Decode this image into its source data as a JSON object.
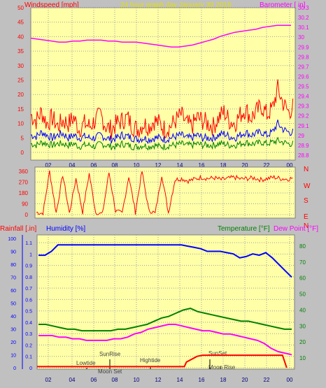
{
  "header": {
    "left_label": "Windspeed [mph]",
    "center_label": "24 hour graph day   January 30 2018",
    "right_label": "Barometer [ in]"
  },
  "colors": {
    "page_bg": "#c0c0c0",
    "plot_bg": "#ffffa8",
    "grid": "#9f9f9f",
    "wind_speed": "#ff0000",
    "wind_avg": "#0000ff",
    "wind_low": "#008000",
    "barometer": "#ff00ff",
    "wind_dir": "#ff0000",
    "humidity": "#0000ff",
    "temperature": "#008000",
    "dewpoint": "#ff00ff",
    "rainfall": "#ff0000",
    "header_center": "#e0e000"
  },
  "chart_data": [
    {
      "name": "wind-barometer",
      "type": "line",
      "x_ticks": [
        "02",
        "04",
        "06",
        "08",
        "10",
        "12",
        "14",
        "16",
        "18",
        "20",
        "22",
        "00"
      ],
      "left_axis": {
        "label": "Windspeed [mph]",
        "ticks": [
          0,
          5,
          10,
          15,
          20,
          25,
          30,
          35,
          40,
          45,
          50
        ],
        "ylim": [
          0,
          50
        ]
      },
      "right_axis": {
        "label": "Barometer [ in]",
        "ticks": [
          "28.8",
          "28.9",
          "29",
          "29.1",
          "29.2",
          "29.3",
          "29.4",
          "29.5",
          "29.6",
          "29.7",
          "29.8",
          "29.9",
          "30",
          "30.1",
          "30.2",
          "30.3"
        ],
        "ylim": [
          28.75,
          30.3
        ]
      },
      "series": [
        {
          "role": "gust",
          "y": [
            13,
            11,
            14,
            10,
            12,
            9,
            11,
            10,
            12,
            8,
            10,
            9,
            11,
            13,
            9,
            8,
            10,
            11,
            12,
            9,
            8,
            10,
            9,
            11,
            10,
            8,
            9,
            11,
            13,
            10,
            9,
            12,
            11,
            10,
            9,
            12,
            14,
            11,
            10,
            13,
            15,
            12,
            14,
            16,
            13,
            15,
            22,
            17,
            14,
            16
          ]
        },
        {
          "role": "average",
          "y": [
            6,
            5.5,
            7,
            6,
            5,
            6,
            6.5,
            5,
            6,
            5,
            5.5,
            5,
            5,
            6,
            5,
            4.5,
            5,
            6,
            5.5,
            5,
            4.5,
            5,
            4.5,
            5,
            5,
            4.5,
            5,
            5.5,
            6,
            5,
            5,
            6,
            5,
            5,
            5,
            6,
            6.5,
            5.5,
            5,
            6,
            7,
            6,
            6.5,
            7,
            6,
            7,
            10,
            8,
            7,
            7
          ]
        },
        {
          "role": "low",
          "y": [
            3,
            2.5,
            3.5,
            3,
            2.5,
            3,
            3,
            2.5,
            3,
            2,
            2.5,
            2.5,
            2,
            3,
            2.5,
            2,
            2,
            3,
            2.5,
            2,
            2,
            2.5,
            2,
            2.5,
            2,
            2,
            2.5,
            2.5,
            3,
            2.5,
            2.5,
            3,
            2.5,
            2.5,
            2.5,
            3,
            3,
            2.5,
            2.5,
            3,
            3.5,
            3,
            3,
            3.5,
            3,
            3.5,
            4,
            3.5,
            3,
            3
          ]
        },
        {
          "role": "barometer",
          "y": [
            29.99,
            29.98,
            29.97,
            29.96,
            29.95,
            29.95,
            29.96,
            29.96,
            29.97,
            29.97,
            29.97,
            29.96,
            29.96,
            29.95,
            29.95,
            29.95,
            29.94,
            29.93,
            29.92,
            29.91,
            29.9,
            29.9,
            29.91,
            29.92,
            29.94,
            29.96,
            29.98,
            30.01,
            30.03,
            30.05,
            30.06,
            30.07,
            30.08,
            30.1,
            30.11,
            30.12,
            30.12,
            30.12
          ]
        }
      ]
    },
    {
      "name": "wind-direction",
      "type": "line",
      "x_ticks": [
        "02",
        "04",
        "06",
        "08",
        "10",
        "12",
        "14",
        "16",
        "18",
        "20",
        "22",
        "00"
      ],
      "left_axis": {
        "ticks": [
          0,
          90,
          180,
          270,
          360
        ],
        "ylim": [
          0,
          360
        ]
      },
      "compass_labels": [
        "N",
        "W",
        "S",
        "E",
        "N"
      ],
      "y": [
        20,
        10,
        360,
        15,
        330,
        10,
        300,
        20,
        340,
        15,
        5,
        350,
        30,
        10,
        320,
        20,
        360,
        40,
        10,
        330,
        15,
        290,
        300,
        280,
        295,
        310,
        300,
        305,
        290,
        300,
        310,
        295,
        300,
        305,
        290,
        300,
        310,
        300,
        295,
        305
      ]
    },
    {
      "name": "humidity-temperature",
      "type": "line",
      "x_ticks": [
        "02",
        "04",
        "06",
        "08",
        "10",
        "12",
        "14",
        "16",
        "18",
        "20",
        "22",
        "00"
      ],
      "left_labels": {
        "rain": "Rainfall [.in]",
        "humidity": "Humidity [%]"
      },
      "right_labels": {
        "temperature": "Temperature [°F]",
        "dewpoint": "Dew Point [°F]"
      },
      "humidity_axis": {
        "ticks": [
          0,
          10,
          20,
          30,
          40,
          50,
          60,
          70,
          80,
          90,
          100
        ],
        "ylim": [
          0,
          100
        ]
      },
      "rain_axis": {
        "ticks": [
          "0",
          "0.1",
          "0.2",
          "0.3",
          "0.4",
          "0.5",
          "0.6",
          "0.7",
          "0.8",
          "0.9",
          "1",
          "1.1"
        ],
        "ylim": [
          0,
          1.15
        ]
      },
      "temp_axis": {
        "ticks": [
          10,
          20,
          30,
          40,
          50,
          60,
          70,
          80
        ],
        "ylim": [
          3,
          87
        ]
      },
      "series": [
        {
          "role": "humidity",
          "y": [
            87,
            87,
            90,
            95,
            95,
            95,
            95,
            95,
            95,
            95,
            95,
            95,
            95,
            95,
            95,
            95,
            95,
            95,
            95,
            95,
            95,
            95,
            95,
            94,
            93,
            92,
            90,
            90,
            90,
            89,
            88,
            85,
            86,
            88,
            87,
            89,
            85,
            80,
            75,
            70
          ]
        },
        {
          "role": "temperature",
          "y": [
            31,
            31,
            30,
            29,
            28,
            28,
            27,
            27,
            27,
            27,
            27,
            28,
            28,
            29,
            30,
            31,
            33,
            35,
            36,
            38,
            40,
            41,
            39,
            38,
            37,
            36,
            35,
            34,
            33,
            33,
            32,
            31,
            30,
            29,
            28,
            28
          ]
        },
        {
          "role": "dewpoint",
          "y": [
            24,
            24,
            24,
            23,
            23,
            22,
            22,
            21,
            21,
            21,
            21,
            22,
            22,
            23,
            25,
            26,
            28,
            29,
            30,
            31,
            31,
            30,
            29,
            28,
            27,
            27,
            26,
            25,
            25,
            24,
            23,
            22,
            21,
            19,
            16,
            14,
            13,
            12
          ]
        },
        {
          "role": "rainfall",
          "x": [
            0,
            13.8,
            14.0,
            15.0,
            15.5,
            23.0,
            23.4
          ],
          "y": [
            0.01,
            0.01,
            0.05,
            0.1,
            0.11,
            0.11,
            0
          ]
        }
      ],
      "events": [
        "SunRise",
        "Lowtide",
        "Moon Set",
        "Hightide",
        "SunSet",
        "Moon Rise"
      ]
    }
  ]
}
